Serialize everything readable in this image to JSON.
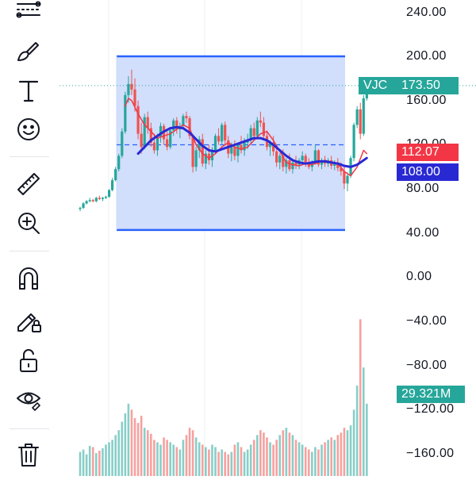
{
  "toolbar": {
    "tools": [
      {
        "name": "trend-line-tool-icon"
      },
      {
        "name": "brush-tool-icon"
      },
      {
        "name": "text-tool-icon"
      },
      {
        "name": "emoji-tool-icon"
      },
      {
        "name": "ruler-measure-icon"
      },
      {
        "name": "zoom-in-icon"
      },
      {
        "name": "magnet-icon"
      },
      {
        "name": "lock-drawing-icon"
      },
      {
        "name": "unlock-icon"
      },
      {
        "name": "eye-visibility-icon"
      },
      {
        "name": "trash-icon"
      }
    ]
  },
  "price_axis": {
    "ticks": [
      "240.00",
      "200.00",
      "160.00",
      "120.00",
      "80.00",
      "40.00",
      "0.00",
      "−40.00",
      "−80.00",
      "−120.00",
      "−160.00"
    ]
  },
  "badges": {
    "symbol": "VJC",
    "last_price": "173.50",
    "ma_red": "112.07",
    "ma_blue": "108.00",
    "volume": "29.321M"
  },
  "colors": {
    "up": "#26a69a",
    "down": "#ef5350",
    "ma_fast": "#f23645",
    "ma_slow": "#2929d4",
    "range_fill": "#c9d8fb",
    "range_line": "#2962ff"
  },
  "chart_data": {
    "type": "candlestick",
    "symbol": "VJC",
    "ylim": [
      -180,
      250
    ],
    "range_box": {
      "top": 200,
      "bottom": 43
    },
    "last_price": 173.5,
    "candles": [
      [
        62,
        64,
        60,
        63
      ],
      [
        63,
        68,
        62,
        67
      ],
      [
        67,
        70,
        66,
        69
      ],
      [
        69,
        72,
        68,
        70
      ],
      [
        70,
        71,
        68,
        69
      ],
      [
        69,
        73,
        68,
        72
      ],
      [
        72,
        74,
        70,
        71
      ],
      [
        71,
        73,
        69,
        72
      ],
      [
        72,
        74,
        71,
        73
      ],
      [
        73,
        80,
        72,
        79
      ],
      [
        79,
        90,
        78,
        88
      ],
      [
        88,
        100,
        87,
        98
      ],
      [
        98,
        112,
        96,
        110
      ],
      [
        110,
        135,
        108,
        132
      ],
      [
        132,
        168,
        130,
        165
      ],
      [
        165,
        182,
        158,
        175
      ],
      [
        175,
        188,
        165,
        170
      ],
      [
        170,
        180,
        150,
        155
      ],
      [
        155,
        160,
        125,
        130
      ],
      [
        130,
        140,
        112,
        118
      ],
      [
        118,
        148,
        116,
        145
      ],
      [
        145,
        150,
        130,
        135
      ],
      [
        135,
        140,
        118,
        122
      ],
      [
        122,
        130,
        112,
        115
      ],
      [
        115,
        130,
        110,
        127
      ],
      [
        127,
        140,
        122,
        137
      ],
      [
        137,
        139,
        120,
        125
      ],
      [
        125,
        132,
        115,
        118
      ],
      [
        118,
        135,
        116,
        133
      ],
      [
        133,
        144,
        128,
        142
      ],
      [
        142,
        145,
        130,
        134
      ],
      [
        134,
        140,
        126,
        137
      ],
      [
        137,
        148,
        134,
        146
      ],
      [
        146,
        150,
        140,
        144
      ],
      [
        144,
        146,
        125,
        128
      ],
      [
        128,
        130,
        95,
        100
      ],
      [
        100,
        118,
        96,
        115
      ],
      [
        115,
        128,
        108,
        125
      ],
      [
        125,
        130,
        100,
        103
      ],
      [
        103,
        115,
        98,
        112
      ],
      [
        112,
        120,
        102,
        106
      ],
      [
        106,
        118,
        100,
        115
      ],
      [
        115,
        130,
        112,
        128
      ],
      [
        128,
        135,
        120,
        123
      ],
      [
        123,
        140,
        120,
        138
      ],
      [
        138,
        141,
        120,
        124
      ],
      [
        124,
        128,
        108,
        112
      ],
      [
        112,
        122,
        105,
        118
      ],
      [
        118,
        124,
        106,
        110
      ],
      [
        110,
        122,
        104,
        120
      ],
      [
        120,
        128,
        112,
        115
      ],
      [
        115,
        126,
        110,
        122
      ],
      [
        122,
        130,
        116,
        124
      ],
      [
        124,
        138,
        120,
        135
      ],
      [
        135,
        140,
        124,
        128
      ],
      [
        128,
        145,
        125,
        142
      ],
      [
        142,
        150,
        136,
        140
      ],
      [
        140,
        145,
        125,
        128
      ],
      [
        128,
        133,
        115,
        118
      ],
      [
        118,
        124,
        110,
        122
      ],
      [
        122,
        128,
        110,
        114
      ],
      [
        114,
        118,
        100,
        104
      ],
      [
        104,
        112,
        98,
        110
      ],
      [
        110,
        116,
        96,
        100
      ],
      [
        100,
        108,
        94,
        106
      ],
      [
        106,
        112,
        96,
        98
      ],
      [
        98,
        106,
        94,
        104
      ],
      [
        104,
        110,
        98,
        102
      ],
      [
        102,
        108,
        98,
        106
      ],
      [
        106,
        114,
        102,
        110
      ],
      [
        110,
        112,
        100,
        104
      ],
      [
        104,
        108,
        98,
        100
      ],
      [
        100,
        106,
        96,
        104
      ],
      [
        104,
        120,
        102,
        115
      ],
      [
        115,
        116,
        100,
        102
      ],
      [
        102,
        108,
        98,
        106
      ],
      [
        106,
        110,
        100,
        103
      ],
      [
        103,
        108,
        100,
        106
      ],
      [
        106,
        110,
        98,
        101
      ],
      [
        101,
        106,
        97,
        104
      ],
      [
        104,
        108,
        96,
        99
      ],
      [
        99,
        104,
        92,
        96
      ],
      [
        96,
        100,
        80,
        85
      ],
      [
        85,
        95,
        78,
        92
      ],
      [
        92,
        110,
        90,
        108
      ],
      [
        108,
        140,
        105,
        138
      ],
      [
        138,
        155,
        135,
        152
      ],
      [
        152,
        158,
        125,
        130
      ],
      [
        130,
        165,
        128,
        162
      ],
      [
        162,
        176,
        160,
        173.5
      ]
    ],
    "ma_fast": [
      [
        14,
        155
      ],
      [
        15,
        162
      ],
      [
        16,
        160
      ],
      [
        18,
        148
      ],
      [
        20,
        138
      ],
      [
        22,
        132
      ],
      [
        24,
        126
      ],
      [
        26,
        128
      ],
      [
        28,
        130
      ],
      [
        30,
        134
      ],
      [
        32,
        138
      ],
      [
        34,
        135
      ],
      [
        36,
        120
      ],
      [
        38,
        112
      ],
      [
        40,
        108
      ],
      [
        42,
        112
      ],
      [
        44,
        118
      ],
      [
        46,
        122
      ],
      [
        48,
        118
      ],
      [
        50,
        116
      ],
      [
        52,
        118
      ],
      [
        54,
        124
      ],
      [
        56,
        130
      ],
      [
        58,
        132
      ],
      [
        60,
        124
      ],
      [
        62,
        114
      ],
      [
        64,
        104
      ],
      [
        66,
        102
      ],
      [
        68,
        101
      ],
      [
        70,
        103
      ],
      [
        72,
        102
      ],
      [
        74,
        104
      ],
      [
        76,
        106
      ],
      [
        78,
        104
      ],
      [
        80,
        103
      ],
      [
        82,
        96
      ],
      [
        84,
        92
      ],
      [
        86,
        100
      ],
      [
        88,
        115
      ],
      [
        89,
        112.07
      ]
    ],
    "ma_slow": [
      [
        18,
        112
      ],
      [
        20,
        118
      ],
      [
        22,
        124
      ],
      [
        24,
        128
      ],
      [
        26,
        132
      ],
      [
        28,
        135
      ],
      [
        30,
        136
      ],
      [
        32,
        135
      ],
      [
        34,
        131
      ],
      [
        36,
        125
      ],
      [
        38,
        119
      ],
      [
        40,
        115
      ],
      [
        42,
        114
      ],
      [
        44,
        116
      ],
      [
        46,
        118
      ],
      [
        48,
        120
      ],
      [
        50,
        122
      ],
      [
        52,
        124
      ],
      [
        54,
        126
      ],
      [
        56,
        126
      ],
      [
        58,
        124
      ],
      [
        60,
        120
      ],
      [
        62,
        115
      ],
      [
        64,
        110
      ],
      [
        66,
        106
      ],
      [
        68,
        104
      ],
      [
        70,
        103
      ],
      [
        72,
        104
      ],
      [
        74,
        105
      ],
      [
        76,
        105
      ],
      [
        78,
        104
      ],
      [
        80,
        103
      ],
      [
        82,
        101
      ],
      [
        84,
        100
      ],
      [
        86,
        102
      ],
      [
        88,
        106
      ],
      [
        89,
        108
      ]
    ],
    "volume": [
      20,
      22,
      18,
      25,
      24,
      19,
      21,
      23,
      26,
      28,
      30,
      34,
      38,
      45,
      52,
      60,
      55,
      48,
      44,
      50,
      40,
      38,
      35,
      30,
      28,
      26,
      32,
      30,
      28,
      26,
      24,
      22,
      30,
      34,
      40,
      38,
      32,
      28,
      26,
      24,
      22,
      26,
      24,
      20,
      22,
      20,
      18,
      20,
      26,
      28,
      24,
      20,
      22,
      26,
      30,
      34,
      38,
      36,
      32,
      28,
      26,
      30,
      34,
      38,
      40,
      36,
      34,
      30,
      28,
      26,
      24,
      22,
      20,
      24,
      22,
      26,
      28,
      30,
      32,
      30,
      34,
      36,
      40,
      38,
      42,
      55,
      75,
      130,
      90,
      60
    ]
  }
}
